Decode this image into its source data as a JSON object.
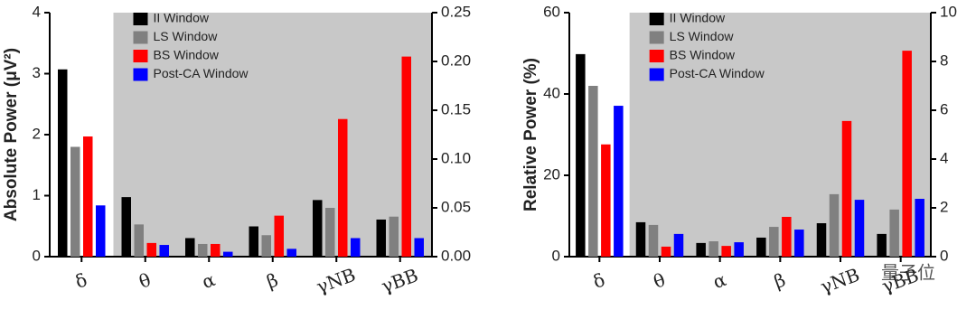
{
  "chart_data": [
    {
      "type": "bar",
      "ylabel": "Absolute Power (μV²)",
      "categories": [
        "δ",
        "θ",
        "α",
        "β",
        "γNB",
        "γBB"
      ],
      "category_axis": [
        "y",
        "y2",
        "y2",
        "y2",
        "y2",
        "y2"
      ],
      "series": [
        {
          "name": "II Window",
          "color": "#000000",
          "values": [
            3.07,
            0.061,
            0.019,
            0.031,
            0.058,
            0.038
          ]
        },
        {
          "name": "LS Window",
          "color": "#808080",
          "values": [
            1.8,
            0.033,
            0.013,
            0.022,
            0.05,
            0.041
          ]
        },
        {
          "name": "BS Window",
          "color": "#ff0000",
          "values": [
            1.97,
            0.014,
            0.013,
            0.042,
            0.141,
            0.205
          ]
        },
        {
          "name": "Post-CA Window",
          "color": "#0000ff",
          "values": [
            0.84,
            0.012,
            0.005,
            0.008,
            0.019,
            0.019
          ]
        }
      ],
      "ylim": [
        0,
        4
      ],
      "yticks": [
        0,
        1,
        2,
        3,
        4
      ],
      "y2lim": [
        0,
        0.25
      ],
      "y2ticks": [
        {
          "value": 0,
          "label": "0.00"
        },
        {
          "value": 0.05,
          "label": "0.05"
        },
        {
          "value": 0.1,
          "label": "0.10"
        },
        {
          "value": 0.15,
          "label": "0.15"
        },
        {
          "value": 0.2,
          "label": "0.20"
        },
        {
          "value": 0.25,
          "label": "0.25"
        }
      ],
      "shade_color": "#c8c8c8"
    },
    {
      "type": "bar",
      "ylabel": "Relative  Power (%)",
      "categories": [
        "δ",
        "θ",
        "α",
        "β",
        "γNB",
        "γBB"
      ],
      "category_axis": [
        "y",
        "y2",
        "y2",
        "y2",
        "y2",
        "y2"
      ],
      "series": [
        {
          "name": "II Window",
          "color": "#000000",
          "values": [
            49.8,
            1.41,
            0.56,
            0.78,
            1.37,
            0.93
          ]
        },
        {
          "name": "LS Window",
          "color": "#808080",
          "values": [
            42,
            1.3,
            0.63,
            1.22,
            2.56,
            1.93
          ]
        },
        {
          "name": "BS Window",
          "color": "#ff0000",
          "values": [
            27.6,
            0.41,
            0.44,
            1.63,
            5.56,
            8.44
          ]
        },
        {
          "name": "Post-CA Window",
          "color": "#0000ff",
          "values": [
            37.1,
            0.93,
            0.59,
            1.11,
            2.33,
            2.37
          ]
        }
      ],
      "ylim": [
        0,
        60
      ],
      "yticks": [
        0,
        20,
        40,
        60
      ],
      "y2lim": [
        0,
        10
      ],
      "y2ticks": [
        0,
        2,
        4,
        6,
        8,
        10
      ],
      "shade_color": "#c8c8c8"
    }
  ],
  "watermark": "量子位"
}
